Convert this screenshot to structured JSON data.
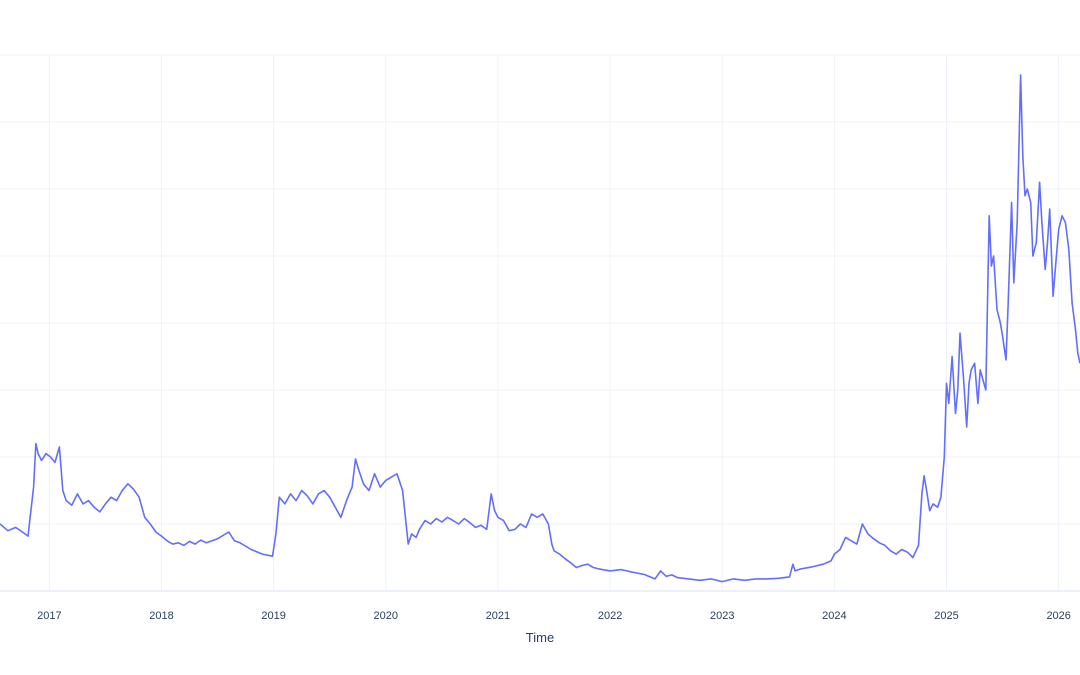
{
  "chart_data": {
    "type": "line",
    "title": "",
    "xlabel": "Time",
    "ylabel": "",
    "x_tick_labels": [
      "2017",
      "2018",
      "2019",
      "2020",
      "2021",
      "2022",
      "2023",
      "2024",
      "2025",
      "2026"
    ],
    "xlim": [
      2016.56,
      2026.19
    ],
    "ylim": [
      0,
      8
    ],
    "y_ticks_shown": false,
    "grid": true,
    "legend": "none",
    "series": [
      {
        "color": "#636efa",
        "x": [
          2016.56,
          2016.63,
          2016.7,
          2016.76,
          2016.81,
          2016.86,
          2016.88,
          2016.9,
          2016.93,
          2016.97,
          2017.01,
          2017.05,
          2017.09,
          2017.12,
          2017.15,
          2017.2,
          2017.25,
          2017.3,
          2017.35,
          2017.4,
          2017.45,
          2017.5,
          2017.55,
          2017.6,
          2017.65,
          2017.7,
          2017.75,
          2017.8,
          2017.85,
          2017.9,
          2017.95,
          2018.0,
          2018.05,
          2018.1,
          2018.15,
          2018.2,
          2018.25,
          2018.3,
          2018.35,
          2018.4,
          2018.5,
          2018.6,
          2018.65,
          2018.7,
          2018.8,
          2018.9,
          2018.99,
          2019.02,
          2019.05,
          2019.1,
          2019.15,
          2019.2,
          2019.25,
          2019.3,
          2019.35,
          2019.4,
          2019.45,
          2019.5,
          2019.55,
          2019.6,
          2019.65,
          2019.7,
          2019.73,
          2019.76,
          2019.8,
          2019.85,
          2019.9,
          2019.95,
          2020.0,
          2020.05,
          2020.1,
          2020.15,
          2020.2,
          2020.23,
          2020.27,
          2020.3,
          2020.35,
          2020.4,
          2020.45,
          2020.5,
          2020.55,
          2020.6,
          2020.65,
          2020.7,
          2020.75,
          2020.8,
          2020.85,
          2020.9,
          2020.94,
          2020.97,
          2021.0,
          2021.05,
          2021.1,
          2021.15,
          2021.2,
          2021.25,
          2021.3,
          2021.35,
          2021.4,
          2021.45,
          2021.48,
          2021.5,
          2021.55,
          2021.6,
          2021.65,
          2021.7,
          2021.75,
          2021.8,
          2021.85,
          2021.9,
          2022.0,
          2022.1,
          2022.2,
          2022.3,
          2022.4,
          2022.45,
          2022.5,
          2022.55,
          2022.6,
          2022.7,
          2022.8,
          2022.9,
          2023.0,
          2023.1,
          2023.2,
          2023.3,
          2023.4,
          2023.5,
          2023.6,
          2023.63,
          2023.65,
          2023.7,
          2023.8,
          2023.9,
          2023.97,
          2024.0,
          2024.05,
          2024.1,
          2024.15,
          2024.2,
          2024.25,
          2024.3,
          2024.35,
          2024.4,
          2024.45,
          2024.5,
          2024.55,
          2024.6,
          2024.65,
          2024.7,
          2024.75,
          2024.78,
          2024.8,
          2024.82,
          2024.85,
          2024.88,
          2024.92,
          2024.95,
          2024.98,
          2025.0,
          2025.02,
          2025.05,
          2025.08,
          2025.1,
          2025.12,
          2025.15,
          2025.18,
          2025.2,
          2025.22,
          2025.25,
          2025.28,
          2025.3,
          2025.35,
          2025.38,
          2025.4,
          2025.42,
          2025.45,
          2025.48,
          2025.5,
          2025.53,
          2025.55,
          2025.58,
          2025.6,
          2025.63,
          2025.66,
          2025.68,
          2025.7,
          2025.72,
          2025.75,
          2025.77,
          2025.8,
          2025.83,
          2025.85,
          2025.88,
          2025.9,
          2025.92,
          2025.95,
          2025.98,
          2026.0,
          2026.03,
          2026.06,
          2026.09,
          2026.12,
          2026.15,
          2026.17,
          2026.19
        ],
        "y": [
          1.0,
          0.9,
          0.95,
          0.88,
          0.82,
          1.55,
          2.2,
          2.05,
          1.95,
          2.05,
          2.0,
          1.92,
          2.15,
          1.5,
          1.35,
          1.28,
          1.45,
          1.3,
          1.35,
          1.25,
          1.18,
          1.3,
          1.4,
          1.35,
          1.5,
          1.6,
          1.52,
          1.4,
          1.1,
          1.0,
          0.88,
          0.82,
          0.75,
          0.7,
          0.72,
          0.68,
          0.74,
          0.7,
          0.76,
          0.72,
          0.78,
          0.88,
          0.75,
          0.72,
          0.62,
          0.55,
          0.52,
          0.85,
          1.4,
          1.3,
          1.45,
          1.35,
          1.5,
          1.42,
          1.3,
          1.45,
          1.5,
          1.4,
          1.25,
          1.1,
          1.35,
          1.55,
          1.97,
          1.8,
          1.6,
          1.5,
          1.75,
          1.55,
          1.65,
          1.7,
          1.75,
          1.5,
          0.7,
          0.85,
          0.8,
          0.92,
          1.05,
          1.0,
          1.08,
          1.03,
          1.1,
          1.05,
          1.0,
          1.08,
          1.02,
          0.95,
          0.98,
          0.92,
          1.45,
          1.2,
          1.1,
          1.05,
          0.9,
          0.92,
          1.0,
          0.95,
          1.15,
          1.1,
          1.15,
          1.0,
          0.7,
          0.6,
          0.55,
          0.48,
          0.42,
          0.35,
          0.38,
          0.4,
          0.35,
          0.33,
          0.3,
          0.32,
          0.28,
          0.25,
          0.18,
          0.3,
          0.22,
          0.24,
          0.2,
          0.18,
          0.16,
          0.18,
          0.14,
          0.18,
          0.16,
          0.18,
          0.18,
          0.19,
          0.21,
          0.4,
          0.3,
          0.33,
          0.36,
          0.4,
          0.45,
          0.55,
          0.62,
          0.8,
          0.75,
          0.7,
          1.0,
          0.85,
          0.78,
          0.72,
          0.68,
          0.6,
          0.55,
          0.62,
          0.58,
          0.5,
          0.68,
          1.45,
          1.72,
          1.52,
          1.2,
          1.3,
          1.25,
          1.4,
          2.0,
          3.1,
          2.8,
          3.5,
          2.65,
          3.0,
          3.85,
          3.2,
          2.45,
          3.1,
          3.3,
          3.4,
          2.8,
          3.3,
          3.0,
          5.6,
          4.85,
          5.0,
          4.2,
          4.0,
          3.8,
          3.45,
          4.3,
          5.8,
          4.6,
          5.5,
          7.7,
          6.5,
          5.9,
          6.0,
          5.8,
          5.0,
          5.2,
          6.1,
          5.5,
          4.8,
          5.2,
          5.7,
          4.4,
          5.0,
          5.4,
          5.6,
          5.5,
          5.1,
          4.3,
          3.9,
          3.55,
          3.4
        ]
      }
    ]
  }
}
